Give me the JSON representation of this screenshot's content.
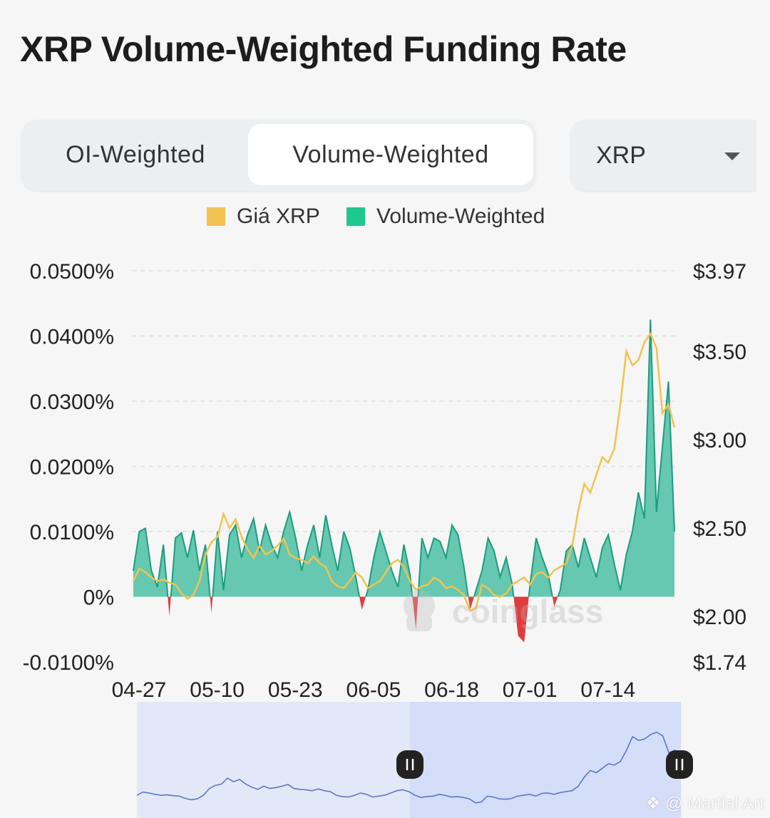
{
  "page": {
    "title": "XRP Volume-Weighted Funding Rate"
  },
  "tabs": [
    {
      "label": "OI-Weighted",
      "active": false
    },
    {
      "label": "Volume-Weighted",
      "active": true
    }
  ],
  "coin_select": {
    "value": "XRP"
  },
  "legend": [
    {
      "label": "Giá XRP",
      "color": "#f0c350"
    },
    {
      "label": "Volume-Weighted",
      "color": "#1fc88c"
    }
  ],
  "chart_watermark": "coinglass",
  "photo_watermark": "@ Martial Art",
  "chart_data": {
    "type": "area",
    "x_tick_labels": [
      "04-27",
      "05-10",
      "05-23",
      "06-05",
      "06-18",
      "07-01",
      "07-14"
    ],
    "x_dates": [
      "2025-04-27",
      "2025-05-10",
      "2025-05-23",
      "2025-06-05",
      "2025-06-18",
      "2025-07-01",
      "2025-07-14"
    ],
    "x_range": [
      "2025-04-27",
      "2025-07-26"
    ],
    "y_left": {
      "ticks": [
        "0.0500%",
        "0.0400%",
        "0.0300%",
        "0.0200%",
        "0.0100%",
        "0%",
        "-0.0100%"
      ],
      "range": [
        -0.01,
        0.05
      ],
      "unit": "%"
    },
    "y_right": {
      "ticks": [
        "$3.97",
        "$3.50",
        "$3.00",
        "$2.50",
        "$2.00",
        "$1.74"
      ],
      "range": [
        1.74,
        3.97
      ],
      "unit": "$"
    },
    "grid": true,
    "legend_position": "top-center",
    "series": [
      {
        "name": "Volume-Weighted",
        "axis": "left",
        "color_positive": "#4cbfa3",
        "color_negative": "#e03c3c",
        "points": [
          [
            "2025-04-27",
            0.004
          ],
          [
            "2025-04-28",
            0.01
          ],
          [
            "2025-04-29",
            0.0105
          ],
          [
            "2025-04-30",
            0.004
          ],
          [
            "2025-05-01",
            0.0015
          ],
          [
            "2025-05-02",
            0.008
          ],
          [
            "2025-05-03",
            -0.003
          ],
          [
            "2025-05-04",
            0.009
          ],
          [
            "2025-05-05",
            0.0098
          ],
          [
            "2025-05-06",
            0.006
          ],
          [
            "2025-05-07",
            0.0102
          ],
          [
            "2025-05-08",
            0.004
          ],
          [
            "2025-05-09",
            0.008
          ],
          [
            "2025-05-10",
            -0.0025
          ],
          [
            "2025-05-11",
            0.01
          ],
          [
            "2025-05-12",
            0.001
          ],
          [
            "2025-05-13",
            0.0095
          ],
          [
            "2025-05-14",
            0.011
          ],
          [
            "2025-05-15",
            0.006
          ],
          [
            "2025-05-16",
            0.0095
          ],
          [
            "2025-05-17",
            0.012
          ],
          [
            "2025-05-18",
            0.007
          ],
          [
            "2025-05-19",
            0.011
          ],
          [
            "2025-05-20",
            0.008
          ],
          [
            "2025-05-21",
            0.006
          ],
          [
            "2025-05-22",
            0.01
          ],
          [
            "2025-05-23",
            0.013
          ],
          [
            "2025-05-24",
            0.009
          ],
          [
            "2025-05-25",
            0.004
          ],
          [
            "2025-05-26",
            0.008
          ],
          [
            "2025-05-27",
            0.011
          ],
          [
            "2025-05-28",
            0.006
          ],
          [
            "2025-05-29",
            0.0125
          ],
          [
            "2025-05-30",
            0.008
          ],
          [
            "2025-05-31",
            0.004
          ],
          [
            "2025-06-01",
            0.01
          ],
          [
            "2025-06-02",
            0.0075
          ],
          [
            "2025-06-03",
            0.003
          ],
          [
            "2025-06-04",
            -0.002
          ],
          [
            "2025-06-05",
            0.001
          ],
          [
            "2025-06-06",
            0.006
          ],
          [
            "2025-06-07",
            0.01
          ],
          [
            "2025-06-08",
            0.007
          ],
          [
            "2025-06-09",
            0.004
          ],
          [
            "2025-06-10",
            0.0015
          ],
          [
            "2025-06-11",
            0.008
          ],
          [
            "2025-06-12",
            0.0035
          ],
          [
            "2025-06-13",
            -0.005
          ],
          [
            "2025-06-14",
            0.009
          ],
          [
            "2025-06-15",
            0.006
          ],
          [
            "2025-06-16",
            0.009
          ],
          [
            "2025-06-17",
            0.0085
          ],
          [
            "2025-06-18",
            0.006
          ],
          [
            "2025-06-19",
            0.011
          ],
          [
            "2025-06-20",
            0.0095
          ],
          [
            "2025-06-21",
            0.0045
          ],
          [
            "2025-06-22",
            -0.002
          ],
          [
            "2025-06-23",
            0.001
          ],
          [
            "2025-06-24",
            0.004
          ],
          [
            "2025-06-25",
            0.009
          ],
          [
            "2025-06-26",
            0.007
          ],
          [
            "2025-06-27",
            0.003
          ],
          [
            "2025-06-28",
            0.006
          ],
          [
            "2025-06-29",
            0.002
          ],
          [
            "2025-06-30",
            -0.006
          ],
          [
            "2025-07-01",
            -0.007
          ],
          [
            "2025-07-02",
            0.002
          ],
          [
            "2025-07-03",
            0.009
          ],
          [
            "2025-07-04",
            0.006
          ],
          [
            "2025-07-05",
            0.0035
          ],
          [
            "2025-07-06",
            -0.0015
          ],
          [
            "2025-07-07",
            0.001
          ],
          [
            "2025-07-08",
            0.007
          ],
          [
            "2025-07-09",
            0.008
          ],
          [
            "2025-07-10",
            0.0045
          ],
          [
            "2025-07-11",
            0.009
          ],
          [
            "2025-07-12",
            0.006
          ],
          [
            "2025-07-13",
            0.003
          ],
          [
            "2025-07-14",
            0.0075
          ],
          [
            "2025-07-15",
            0.0095
          ],
          [
            "2025-07-16",
            0.005
          ],
          [
            "2025-07-17",
            0.001
          ],
          [
            "2025-07-18",
            0.0065
          ],
          [
            "2025-07-19",
            0.01
          ],
          [
            "2025-07-20",
            0.016
          ],
          [
            "2025-07-21",
            0.012
          ],
          [
            "2025-07-22",
            0.0425
          ],
          [
            "2025-07-23",
            0.013
          ],
          [
            "2025-07-24",
            0.023
          ],
          [
            "2025-07-25",
            0.033
          ],
          [
            "2025-07-26",
            0.01
          ]
        ]
      },
      {
        "name": "Giá XRP",
        "axis": "right",
        "color": "#f0c350",
        "points": [
          [
            "2025-04-27",
            2.2
          ],
          [
            "2025-04-28",
            2.27
          ],
          [
            "2025-04-29",
            2.25
          ],
          [
            "2025-04-30",
            2.22
          ],
          [
            "2025-05-01",
            2.2
          ],
          [
            "2025-05-02",
            2.21
          ],
          [
            "2025-05-03",
            2.19
          ],
          [
            "2025-05-04",
            2.18
          ],
          [
            "2025-05-05",
            2.13
          ],
          [
            "2025-05-06",
            2.1
          ],
          [
            "2025-05-07",
            2.12
          ],
          [
            "2025-05-08",
            2.2
          ],
          [
            "2025-05-09",
            2.35
          ],
          [
            "2025-05-10",
            2.42
          ],
          [
            "2025-05-11",
            2.45
          ],
          [
            "2025-05-12",
            2.58
          ],
          [
            "2025-05-13",
            2.5
          ],
          [
            "2025-05-14",
            2.55
          ],
          [
            "2025-05-15",
            2.45
          ],
          [
            "2025-05-16",
            2.38
          ],
          [
            "2025-05-17",
            2.33
          ],
          [
            "2025-05-18",
            2.4
          ],
          [
            "2025-05-19",
            2.35
          ],
          [
            "2025-05-20",
            2.37
          ],
          [
            "2025-05-21",
            2.4
          ],
          [
            "2025-05-22",
            2.44
          ],
          [
            "2025-05-23",
            2.35
          ],
          [
            "2025-05-24",
            2.33
          ],
          [
            "2025-05-25",
            2.32
          ],
          [
            "2025-05-26",
            2.3
          ],
          [
            "2025-05-27",
            2.34
          ],
          [
            "2025-05-28",
            2.3
          ],
          [
            "2025-05-29",
            2.28
          ],
          [
            "2025-05-30",
            2.2
          ],
          [
            "2025-05-31",
            2.17
          ],
          [
            "2025-06-01",
            2.16
          ],
          [
            "2025-06-02",
            2.2
          ],
          [
            "2025-06-03",
            2.25
          ],
          [
            "2025-06-04",
            2.22
          ],
          [
            "2025-06-05",
            2.16
          ],
          [
            "2025-06-06",
            2.18
          ],
          [
            "2025-06-07",
            2.2
          ],
          [
            "2025-06-08",
            2.25
          ],
          [
            "2025-06-09",
            2.3
          ],
          [
            "2025-06-10",
            2.32
          ],
          [
            "2025-06-11",
            2.28
          ],
          [
            "2025-06-12",
            2.2
          ],
          [
            "2025-06-13",
            2.15
          ],
          [
            "2025-06-14",
            2.17
          ],
          [
            "2025-06-15",
            2.18
          ],
          [
            "2025-06-16",
            2.22
          ],
          [
            "2025-06-17",
            2.2
          ],
          [
            "2025-06-18",
            2.16
          ],
          [
            "2025-06-19",
            2.17
          ],
          [
            "2025-06-20",
            2.15
          ],
          [
            "2025-06-21",
            2.12
          ],
          [
            "2025-06-22",
            2.03
          ],
          [
            "2025-06-23",
            2.05
          ],
          [
            "2025-06-24",
            2.18
          ],
          [
            "2025-06-25",
            2.16
          ],
          [
            "2025-06-26",
            2.12
          ],
          [
            "2025-06-27",
            2.11
          ],
          [
            "2025-06-28",
            2.13
          ],
          [
            "2025-06-29",
            2.18
          ],
          [
            "2025-06-30",
            2.2
          ],
          [
            "2025-07-01",
            2.22
          ],
          [
            "2025-07-02",
            2.18
          ],
          [
            "2025-07-03",
            2.24
          ],
          [
            "2025-07-04",
            2.25
          ],
          [
            "2025-07-05",
            2.22
          ],
          [
            "2025-07-06",
            2.26
          ],
          [
            "2025-07-07",
            2.28
          ],
          [
            "2025-07-08",
            2.3
          ],
          [
            "2025-07-09",
            2.4
          ],
          [
            "2025-07-10",
            2.6
          ],
          [
            "2025-07-11",
            2.75
          ],
          [
            "2025-07-12",
            2.7
          ],
          [
            "2025-07-13",
            2.8
          ],
          [
            "2025-07-14",
            2.9
          ],
          [
            "2025-07-15",
            2.87
          ],
          [
            "2025-07-16",
            2.95
          ],
          [
            "2025-07-17",
            3.2
          ],
          [
            "2025-07-18",
            3.5
          ],
          [
            "2025-07-19",
            3.42
          ],
          [
            "2025-07-20",
            3.45
          ],
          [
            "2025-07-21",
            3.55
          ],
          [
            "2025-07-22",
            3.6
          ],
          [
            "2025-07-23",
            3.52
          ],
          [
            "2025-07-24",
            3.15
          ],
          [
            "2025-07-25",
            3.2
          ],
          [
            "2025-07-26",
            3.07
          ]
        ]
      }
    ]
  }
}
